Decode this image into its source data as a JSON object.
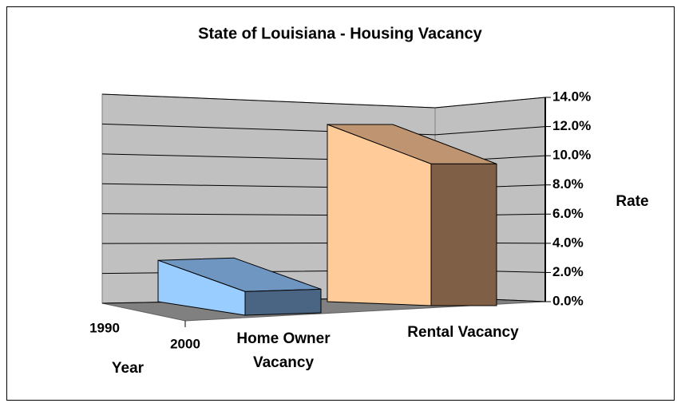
{
  "chart_data": {
    "type": "area3d",
    "title": "State of Louisiana - Housing Vacancy",
    "categories": [
      "Home Owner Vacancy",
      "Rental Vacancy"
    ],
    "series": [
      {
        "name": "1990",
        "values": [
          2.8,
          12.0
        ]
      },
      {
        "name": "2000",
        "values": [
          1.6,
          9.6
        ]
      }
    ],
    "colors": [
      [
        "#99ccff",
        "#6f96c0",
        "#4a6484"
      ],
      [
        "#ffcc99",
        "#bf9470",
        "#7f6047"
      ]
    ],
    "y_label": "Rate",
    "depth_label": "Year",
    "ylim": [
      0,
      14
    ],
    "yticks": [
      {
        "value": 0,
        "label": "0.0%"
      },
      {
        "value": 2,
        "label": "2.0%"
      },
      {
        "value": 4,
        "label": "4.0%"
      },
      {
        "value": 6,
        "label": "6.0%"
      },
      {
        "value": 8,
        "label": "8.0%"
      },
      {
        "value": 10,
        "label": "10.0%"
      },
      {
        "value": 12,
        "label": "12.0%"
      },
      {
        "value": 14,
        "label": "14.0%"
      }
    ],
    "grid": true
  }
}
